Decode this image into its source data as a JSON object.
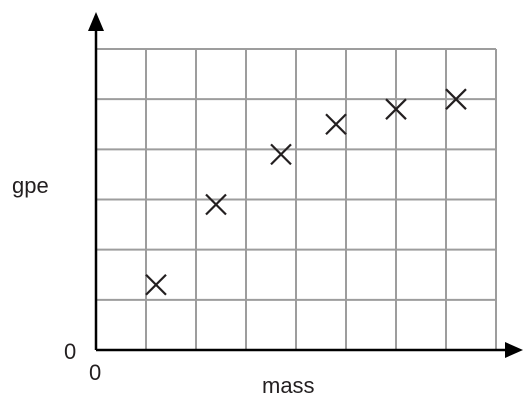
{
  "chart_data": {
    "type": "scatter",
    "xlabel": "mass",
    "ylabel": "gpe",
    "x_origin_label": "0",
    "y_origin_label": "0",
    "xlim": [
      0,
      8
    ],
    "ylim": [
      0,
      6
    ],
    "grid": true,
    "points": [
      {
        "x": 1.2,
        "y": 1.3
      },
      {
        "x": 2.4,
        "y": 2.9
      },
      {
        "x": 3.7,
        "y": 3.9
      },
      {
        "x": 4.8,
        "y": 4.5
      },
      {
        "x": 6.0,
        "y": 4.8
      },
      {
        "x": 7.2,
        "y": 5.0
      }
    ]
  }
}
